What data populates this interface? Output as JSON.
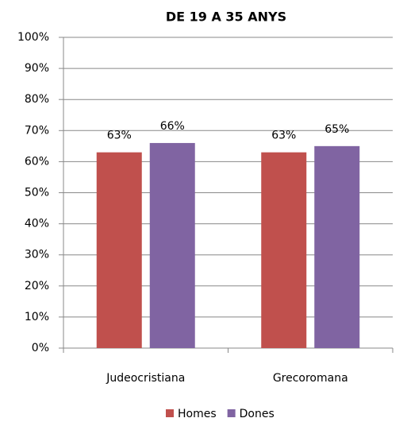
{
  "chart_data": {
    "type": "bar",
    "title": "DE 19 A 35 ANYS",
    "categories": [
      "Judeocristiana",
      "Grecoromana"
    ],
    "series": [
      {
        "name": "Homes",
        "color": "#c0504d",
        "values": [
          63,
          63
        ],
        "value_labels": [
          "63%",
          "63%"
        ]
      },
      {
        "name": "Dones",
        "color": "#8064a2",
        "values": [
          66,
          65
        ],
        "value_labels": [
          "66%",
          "65%"
        ]
      }
    ],
    "ylim": [
      0,
      100
    ],
    "yticks": [
      {
        "value": 0,
        "label": "0%"
      },
      {
        "value": 10,
        "label": "10%"
      },
      {
        "value": 20,
        "label": "20%"
      },
      {
        "value": 30,
        "label": "30%"
      },
      {
        "value": 40,
        "label": "40%"
      },
      {
        "value": 50,
        "label": "50%"
      },
      {
        "value": 60,
        "label": "60%"
      },
      {
        "value": 70,
        "label": "70%"
      },
      {
        "value": 80,
        "label": "80%"
      },
      {
        "value": 90,
        "label": "90%"
      },
      {
        "value": 100,
        "label": "100%"
      }
    ],
    "grid": true,
    "legend": "bottom"
  }
}
